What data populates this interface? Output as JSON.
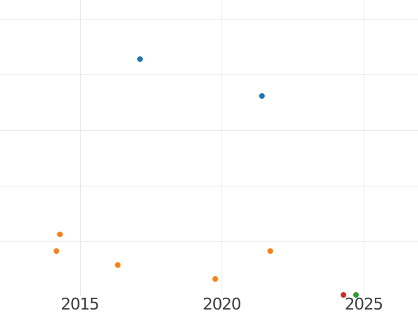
{
  "chart_data": {
    "type": "scatter",
    "title": "",
    "xlabel": "",
    "ylabel": "",
    "grid": true,
    "legend": "none",
    "background_color": "#ffffff",
    "gridline_color": "#e8e8e8",
    "tick_label_color": "#3d3d3d",
    "marker_diameter_px": 8,
    "x_ticks": [
      2015,
      2020,
      2025
    ],
    "x_tick_labels": [
      "2015",
      "2020",
      "2025"
    ],
    "x_range_visible": [
      2012.2,
      2026.9
    ],
    "y_tick_labels_visible": false,
    "y_axis_note": "no y tick labels visible; y values are in gridline units above the plot bottom (1 unit = 1 gridline spacing)",
    "y_gridline_units": [
      1,
      2,
      3,
      4,
      5
    ],
    "ylim": [
      0,
      5.33
    ],
    "series": [
      {
        "name": "blue",
        "color": "#1f77b4",
        "points": [
          {
            "x": 2017.13,
            "y": 4.27
          },
          {
            "x": 2021.42,
            "y": 3.61
          }
        ]
      },
      {
        "name": "orange",
        "color": "#ff7f0e",
        "points": [
          {
            "x": 2014.29,
            "y": 1.13
          },
          {
            "x": 2014.19,
            "y": 0.83
          },
          {
            "x": 2016.34,
            "y": 0.57
          },
          {
            "x": 2019.78,
            "y": 0.32
          },
          {
            "x": 2021.72,
            "y": 0.82
          }
        ]
      },
      {
        "name": "red",
        "color": "#d62728",
        "points": [
          {
            "x": 2024.3,
            "y": 0.04
          }
        ]
      },
      {
        "name": "green",
        "color": "#2ca02c",
        "points": [
          {
            "x": 2024.74,
            "y": 0.04
          }
        ]
      }
    ]
  }
}
